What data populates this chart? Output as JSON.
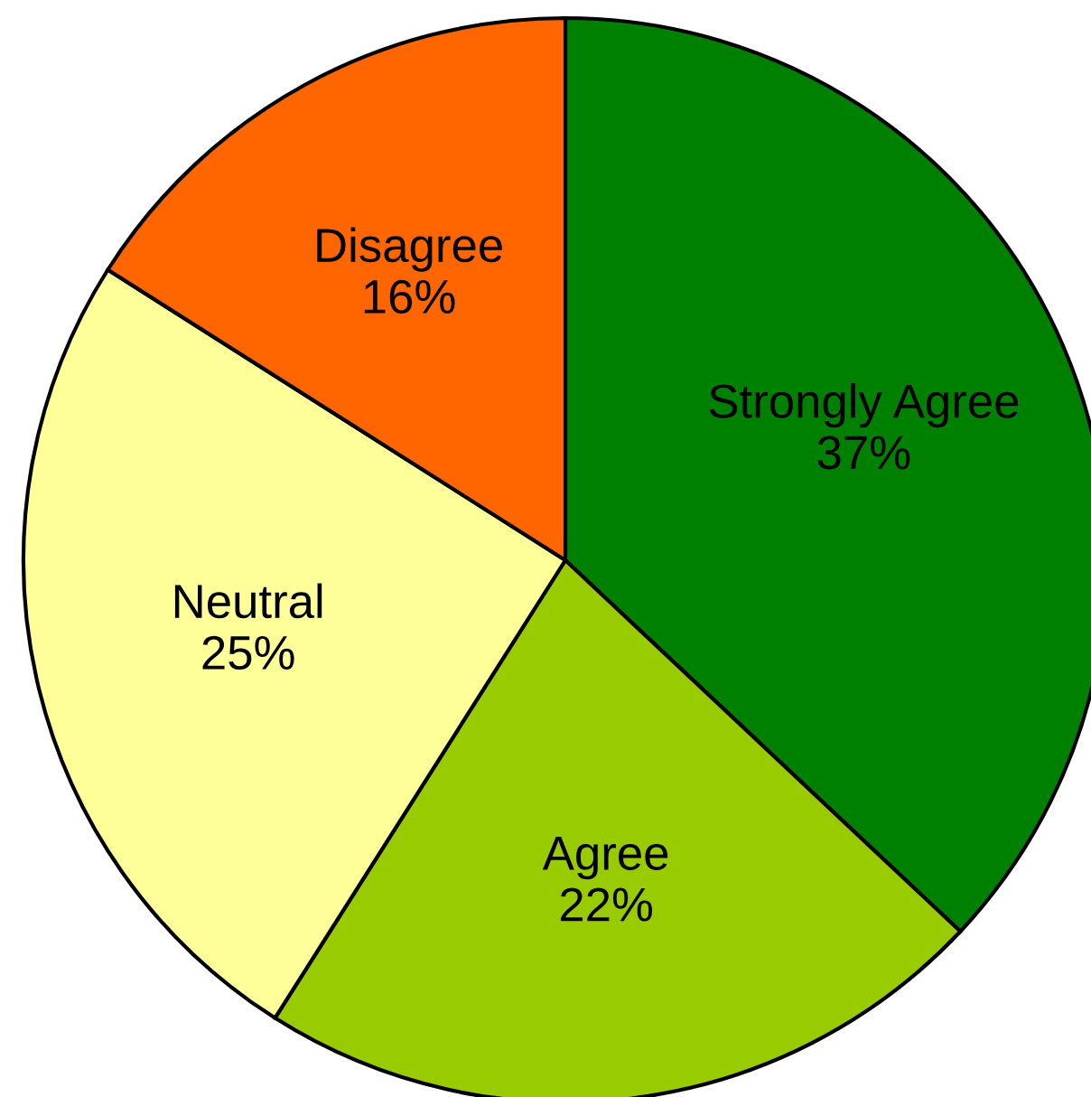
{
  "chart_data": {
    "type": "pie",
    "categories": [
      "Strongly Agree",
      "Agree",
      "Neutral",
      "Disagree"
    ],
    "values": [
      37,
      22,
      25,
      16
    ],
    "colors": [
      "#008000",
      "#99cc00",
      "#ffff99",
      "#ff6600"
    ],
    "value_labels": [
      "37%",
      "22%",
      "25%",
      "16%"
    ],
    "legend": false
  }
}
